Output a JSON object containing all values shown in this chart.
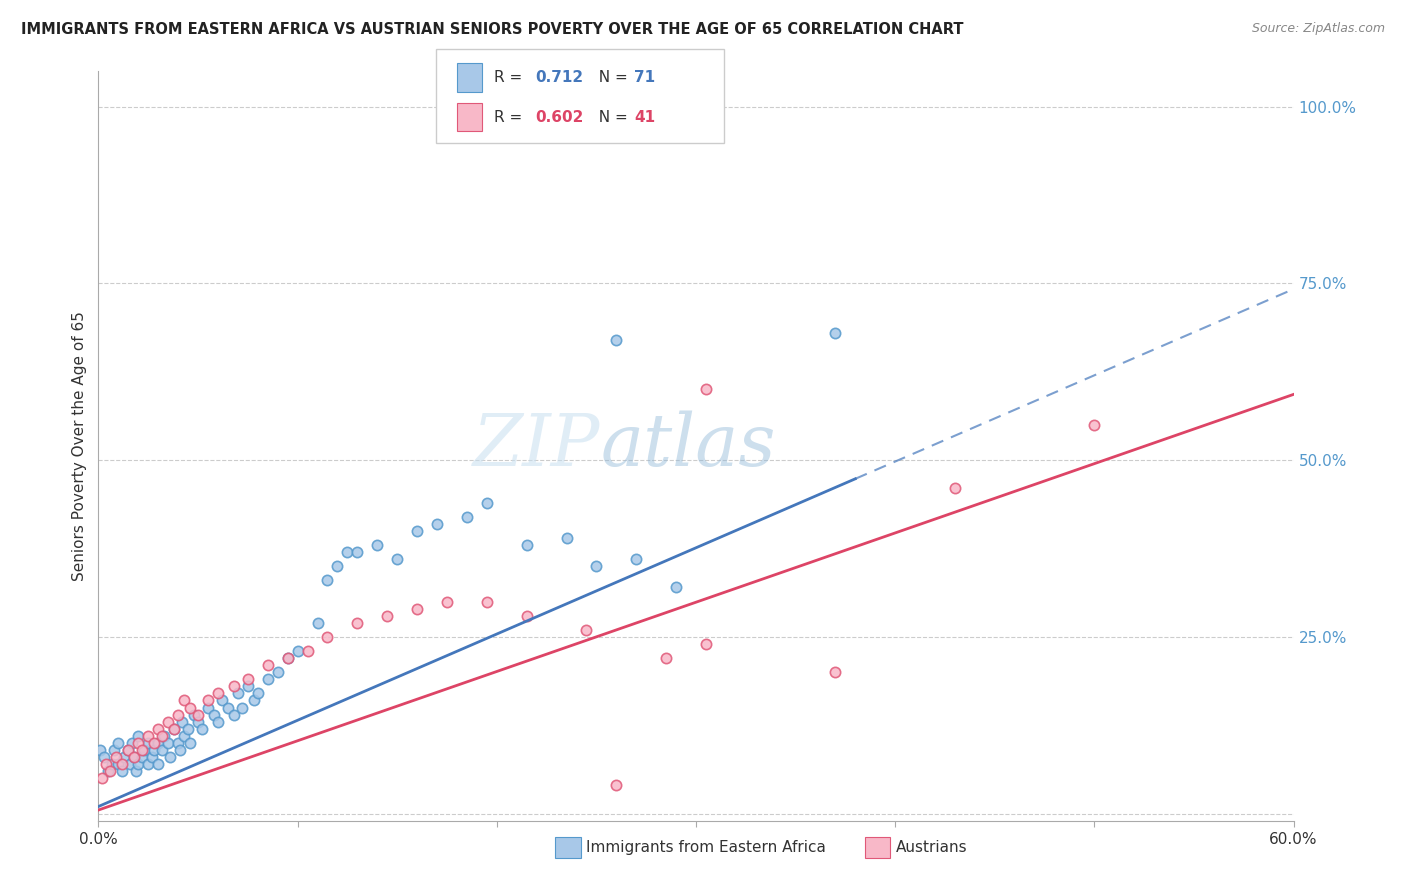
{
  "title": "IMMIGRANTS FROM EASTERN AFRICA VS AUSTRIAN SENIORS POVERTY OVER THE AGE OF 65 CORRELATION CHART",
  "source": "Source: ZipAtlas.com",
  "ylabel": "Seniors Poverty Over the Age of 65",
  "xlim": [
    0.0,
    0.6
  ],
  "ylim": [
    -0.01,
    1.05
  ],
  "x_ticks": [
    0.0,
    0.1,
    0.2,
    0.3,
    0.4,
    0.5,
    0.6
  ],
  "x_tick_labels": [
    "0.0%",
    "",
    "",
    "",
    "",
    "",
    "60.0%"
  ],
  "y_ticks_right": [
    0.0,
    0.25,
    0.5,
    0.75,
    1.0
  ],
  "y_tick_labels_right": [
    "",
    "25.0%",
    "50.0%",
    "75.0%",
    "100.0%"
  ],
  "blue_color": "#a8c8e8",
  "blue_edge_color": "#5599cc",
  "pink_color": "#f8b8c8",
  "pink_edge_color": "#e05878",
  "blue_line_color": "#4477bb",
  "pink_line_color": "#dd4466",
  "legend_R_blue": "0.712",
  "legend_N_blue": "71",
  "legend_R_pink": "0.602",
  "legend_N_pink": "41",
  "watermark_zip": "ZIP",
  "watermark_atlas": "atlas",
  "blue_line_slope": 1.22,
  "blue_line_intercept": 0.01,
  "blue_line_solid_end": 0.38,
  "blue_line_dashed_end": 0.6,
  "pink_line_slope": 0.98,
  "pink_line_intercept": 0.005,
  "pink_line_x_end": 0.6,
  "blue_scatter_x": [
    0.001,
    0.003,
    0.005,
    0.007,
    0.008,
    0.01,
    0.01,
    0.012,
    0.013,
    0.015,
    0.016,
    0.017,
    0.018,
    0.019,
    0.02,
    0.02,
    0.022,
    0.023,
    0.025,
    0.025,
    0.027,
    0.028,
    0.03,
    0.03,
    0.032,
    0.033,
    0.035,
    0.036,
    0.038,
    0.04,
    0.041,
    0.042,
    0.043,
    0.045,
    0.046,
    0.048,
    0.05,
    0.052,
    0.055,
    0.058,
    0.06,
    0.062,
    0.065,
    0.068,
    0.07,
    0.072,
    0.075,
    0.078,
    0.08,
    0.085,
    0.09,
    0.095,
    0.1,
    0.11,
    0.115,
    0.12,
    0.125,
    0.13,
    0.14,
    0.15,
    0.16,
    0.17,
    0.185,
    0.195,
    0.215,
    0.235,
    0.25,
    0.27,
    0.29,
    0.26,
    0.37
  ],
  "blue_scatter_y": [
    0.09,
    0.08,
    0.06,
    0.07,
    0.09,
    0.07,
    0.1,
    0.06,
    0.08,
    0.09,
    0.07,
    0.1,
    0.08,
    0.06,
    0.07,
    0.11,
    0.08,
    0.09,
    0.07,
    0.1,
    0.08,
    0.09,
    0.1,
    0.07,
    0.09,
    0.11,
    0.1,
    0.08,
    0.12,
    0.1,
    0.09,
    0.13,
    0.11,
    0.12,
    0.1,
    0.14,
    0.13,
    0.12,
    0.15,
    0.14,
    0.13,
    0.16,
    0.15,
    0.14,
    0.17,
    0.15,
    0.18,
    0.16,
    0.17,
    0.19,
    0.2,
    0.22,
    0.23,
    0.27,
    0.33,
    0.35,
    0.37,
    0.37,
    0.38,
    0.36,
    0.4,
    0.41,
    0.42,
    0.44,
    0.38,
    0.39,
    0.35,
    0.36,
    0.32,
    0.67,
    0.68
  ],
  "pink_scatter_x": [
    0.002,
    0.004,
    0.006,
    0.009,
    0.012,
    0.015,
    0.018,
    0.02,
    0.022,
    0.025,
    0.028,
    0.03,
    0.032,
    0.035,
    0.038,
    0.04,
    0.043,
    0.046,
    0.05,
    0.055,
    0.06,
    0.068,
    0.075,
    0.085,
    0.095,
    0.105,
    0.115,
    0.13,
    0.145,
    0.16,
    0.175,
    0.195,
    0.215,
    0.245,
    0.285,
    0.305,
    0.37,
    0.43,
    0.305,
    0.5,
    0.26
  ],
  "pink_scatter_y": [
    0.05,
    0.07,
    0.06,
    0.08,
    0.07,
    0.09,
    0.08,
    0.1,
    0.09,
    0.11,
    0.1,
    0.12,
    0.11,
    0.13,
    0.12,
    0.14,
    0.16,
    0.15,
    0.14,
    0.16,
    0.17,
    0.18,
    0.19,
    0.21,
    0.22,
    0.23,
    0.25,
    0.27,
    0.28,
    0.29,
    0.3,
    0.3,
    0.28,
    0.26,
    0.22,
    0.24,
    0.2,
    0.46,
    0.6,
    0.55,
    0.04
  ]
}
